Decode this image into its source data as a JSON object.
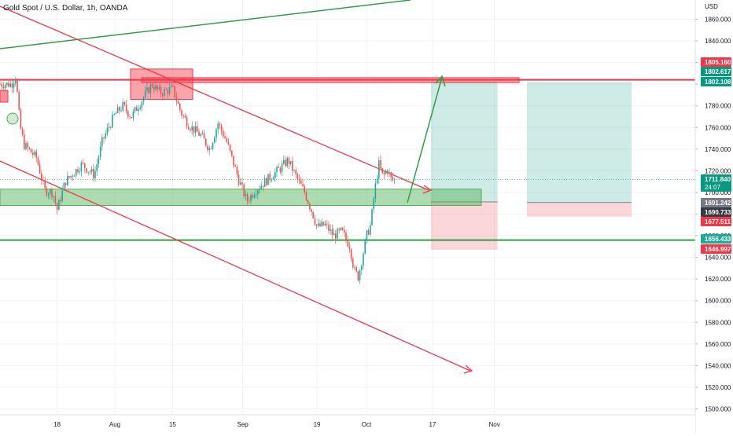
{
  "title": "Gold Spot / U.S. Dollar, 1h, OANDA",
  "currency": "USD",
  "chart_data": {
    "type": "candlestick",
    "symbol": "Gold Spot / U.S. Dollar",
    "timeframe": "1h",
    "source": "OANDA",
    "ylim": [
      1490,
      1880
    ],
    "y_ticks": [
      1500,
      1520,
      1540,
      1560,
      1580,
      1600,
      1620,
      1640,
      1660,
      1680,
      1700,
      1720,
      1740,
      1760,
      1780,
      1800,
      1820,
      1840,
      1860
    ],
    "x_ticks": [
      "18",
      "Aug",
      "15",
      "Sep",
      "19",
      "Oct",
      "17",
      "Nov"
    ],
    "price_path": [
      [
        "Jul 7",
        1800
      ],
      [
        "Jul 8",
        1808
      ],
      [
        "Jul 9",
        1762
      ],
      [
        "Jul 10",
        1744
      ],
      [
        "Jul 13",
        1732
      ],
      [
        "Jul 15",
        1702
      ],
      [
        "Jul 17",
        1700
      ],
      [
        "Jul 18",
        1684
      ],
      [
        "Jul 20",
        1710
      ],
      [
        "Jul 24",
        1726
      ],
      [
        "Jul 27",
        1716
      ],
      [
        "Jul 29",
        1748
      ],
      [
        "Aug 1",
        1772
      ],
      [
        "Aug 3",
        1780
      ],
      [
        "Aug 5",
        1770
      ],
      [
        "Aug 8",
        1788
      ],
      [
        "Aug 10",
        1800
      ],
      [
        "Aug 12",
        1792
      ],
      [
        "Aug 15",
        1796
      ],
      [
        "Aug 17",
        1774
      ],
      [
        "Aug 19",
        1762
      ],
      [
        "Aug 22",
        1752
      ],
      [
        "Aug 24",
        1740
      ],
      [
        "Aug 26",
        1764
      ],
      [
        "Aug 28",
        1748
      ],
      [
        "Aug 31",
        1712
      ],
      [
        "Sep 2",
        1692
      ],
      [
        "Sep 4",
        1702
      ],
      [
        "Sep 7",
        1712
      ],
      [
        "Sep 10",
        1722
      ],
      [
        "Sep 12",
        1730
      ],
      [
        "Sep 14",
        1714
      ],
      [
        "Sep 16",
        1700
      ],
      [
        "Sep 18",
        1680
      ],
      [
        "Sep 19",
        1668
      ],
      [
        "Sep 21",
        1670
      ],
      [
        "Sep 23",
        1660
      ],
      [
        "Sep 25",
        1664
      ],
      [
        "Sep 27",
        1650
      ],
      [
        "Sep 28",
        1628
      ],
      [
        "Sep 29",
        1622
      ],
      [
        "Sep 30",
        1640
      ],
      [
        "Oct 1",
        1660
      ],
      [
        "Oct 2",
        1670
      ],
      [
        "Oct 3",
        1702
      ],
      [
        "Oct 4",
        1726
      ],
      [
        "Oct 5",
        1714
      ],
      [
        "Oct 6",
        1722
      ],
      [
        "Oct 7",
        1712
      ],
      [
        "Oct 8",
        1711.84
      ]
    ],
    "price_labels": [
      {
        "value": "1805.160",
        "color": "#f23645"
      },
      {
        "value": "1802.617",
        "color": "#089981"
      },
      {
        "value": "1802.108",
        "color": "#089981"
      },
      {
        "value": "1711.840",
        "sub": "24:07",
        "color": "#089981"
      },
      {
        "value": "1691.242",
        "color": "#787b86"
      },
      {
        "value": "1690.733",
        "color": "#363a45"
      },
      {
        "value": "1677.511",
        "color": "#f23645"
      },
      {
        "value": "1656.433",
        "color": "#22ab94"
      },
      {
        "value": "1646.997",
        "color": "#f23645"
      }
    ],
    "annotations": {
      "resistance_line": 1804,
      "support_line": 1656,
      "resistance_box": [
        1786,
        1814
      ],
      "support_zone": [
        1688,
        1703
      ],
      "long_position_1": {
        "entry": 1691.242,
        "target": 1802.617,
        "stop": 1646.997
      },
      "long_position_2": {
        "entry": 1690.733,
        "target": 1802.108,
        "stop": 1677.511
      }
    },
    "colors": {
      "up": "#26a69a",
      "down": "#ef5350",
      "resistance": "#f23645",
      "support": "#22ab94"
    }
  }
}
